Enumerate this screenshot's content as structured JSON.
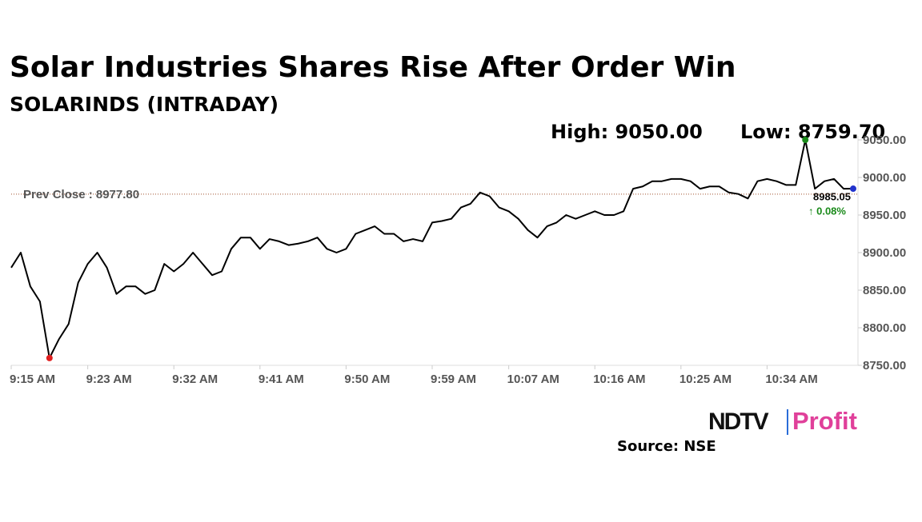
{
  "chart_data": {
    "type": "line",
    "title": "Solar Industries Shares Rise After Order Win",
    "subtitle": "SOLARINDS (INTRADAY)",
    "annotations": {
      "high": "High: 9050.00",
      "low": "Low: 8759.70",
      "prev_close": {
        "value": 8977.8,
        "label": "Prev Close : 8977.80"
      },
      "last": {
        "label": "8985.05",
        "change": "↑ 0.08%"
      }
    },
    "source": "Source: NSE",
    "logo": [
      "NDTV",
      "Profit"
    ],
    "categories": [
      "9:15 AM",
      null,
      null,
      null,
      null,
      null,
      null,
      null,
      "9:23 AM",
      null,
      null,
      null,
      null,
      null,
      null,
      null,
      null,
      "9:32 AM",
      null,
      null,
      null,
      null,
      null,
      null,
      null,
      null,
      "9:41 AM",
      null,
      null,
      null,
      null,
      null,
      null,
      null,
      null,
      "9:50 AM",
      null,
      null,
      null,
      null,
      null,
      null,
      null,
      null,
      "9:59 AM",
      null,
      null,
      null,
      null,
      null,
      null,
      null,
      "10:07 AM",
      null,
      null,
      null,
      null,
      null,
      null,
      null,
      null,
      "10:16 AM",
      null,
      null,
      null,
      null,
      null,
      null,
      null,
      null,
      "10:25 AM",
      null,
      null,
      null,
      null,
      null,
      null,
      null,
      null,
      "10:34 AM",
      null,
      null,
      null,
      null,
      null,
      null,
      null,
      null,
      null
    ],
    "values": [
      8880,
      8900,
      8855,
      8835,
      8759.7,
      8785,
      8805,
      8860,
      8885,
      8900,
      8880,
      8845,
      8855,
      8855,
      8845,
      8850,
      8885,
      8875,
      8885,
      8900,
      8885,
      8870,
      8875,
      8905,
      8920,
      8920,
      8905,
      8918,
      8915,
      8910,
      8912,
      8915,
      8920,
      8905,
      8900,
      8905,
      8925,
      8930,
      8935,
      8925,
      8925,
      8915,
      8918,
      8915,
      8940,
      8942,
      8945,
      8960,
      8965,
      8980,
      8975,
      8960,
      8955,
      8945,
      8930,
      8920,
      8935,
      8940,
      8950,
      8945,
      8950,
      8955,
      8950,
      8950,
      8955,
      8985,
      8988,
      8995,
      8995,
      8998,
      8998,
      8995,
      8985,
      8988,
      8988,
      8980,
      8978,
      8972,
      8995,
      8998,
      8995,
      8990,
      8990,
      9050,
      8985,
      8995,
      8998,
      8985,
      8985.05
    ],
    "color": "#000000",
    "ylim": [
      8750,
      9050
    ],
    "yticks": [
      {
        "value": 8750,
        "label": "8750.00"
      },
      {
        "value": 8800,
        "label": "8800.00"
      },
      {
        "value": 8850,
        "label": "8850.00"
      },
      {
        "value": 8900,
        "label": "8900.00"
      },
      {
        "value": 8950,
        "label": "8950.00"
      },
      {
        "value": 9000,
        "label": "9000.00"
      },
      {
        "value": 9050,
        "label": "9050.00"
      }
    ]
  }
}
